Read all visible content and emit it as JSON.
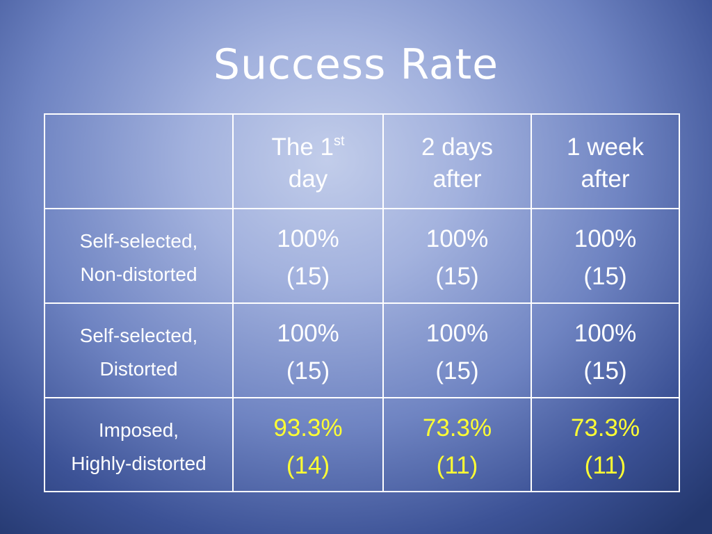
{
  "title": "Success Rate",
  "table": {
    "header": [
      {
        "lines": [
          "The 1",
          "day"
        ],
        "sup": "st"
      },
      {
        "lines": [
          "2 days",
          "after"
        ]
      },
      {
        "lines": [
          "1 week",
          "after"
        ]
      }
    ],
    "rows": [
      {
        "label": [
          "Self-selected,",
          "Non-distorted"
        ],
        "highlight": false,
        "cells": [
          [
            "100%",
            "(15)"
          ],
          [
            "100%",
            "(15)"
          ],
          [
            "100%",
            "(15)"
          ]
        ]
      },
      {
        "label": [
          "Self-selected,",
          "Distorted"
        ],
        "highlight": false,
        "cells": [
          [
            "100%",
            "(15)"
          ],
          [
            "100%",
            "(15)"
          ],
          [
            "100%",
            "(15)"
          ]
        ]
      },
      {
        "label": [
          "Imposed,",
          "Highly-distorted"
        ],
        "highlight": true,
        "cells": [
          [
            "93.3%",
            "(14)"
          ],
          [
            "73.3%",
            "(11)"
          ],
          [
            "73.3%",
            "(11)"
          ]
        ]
      }
    ]
  }
}
